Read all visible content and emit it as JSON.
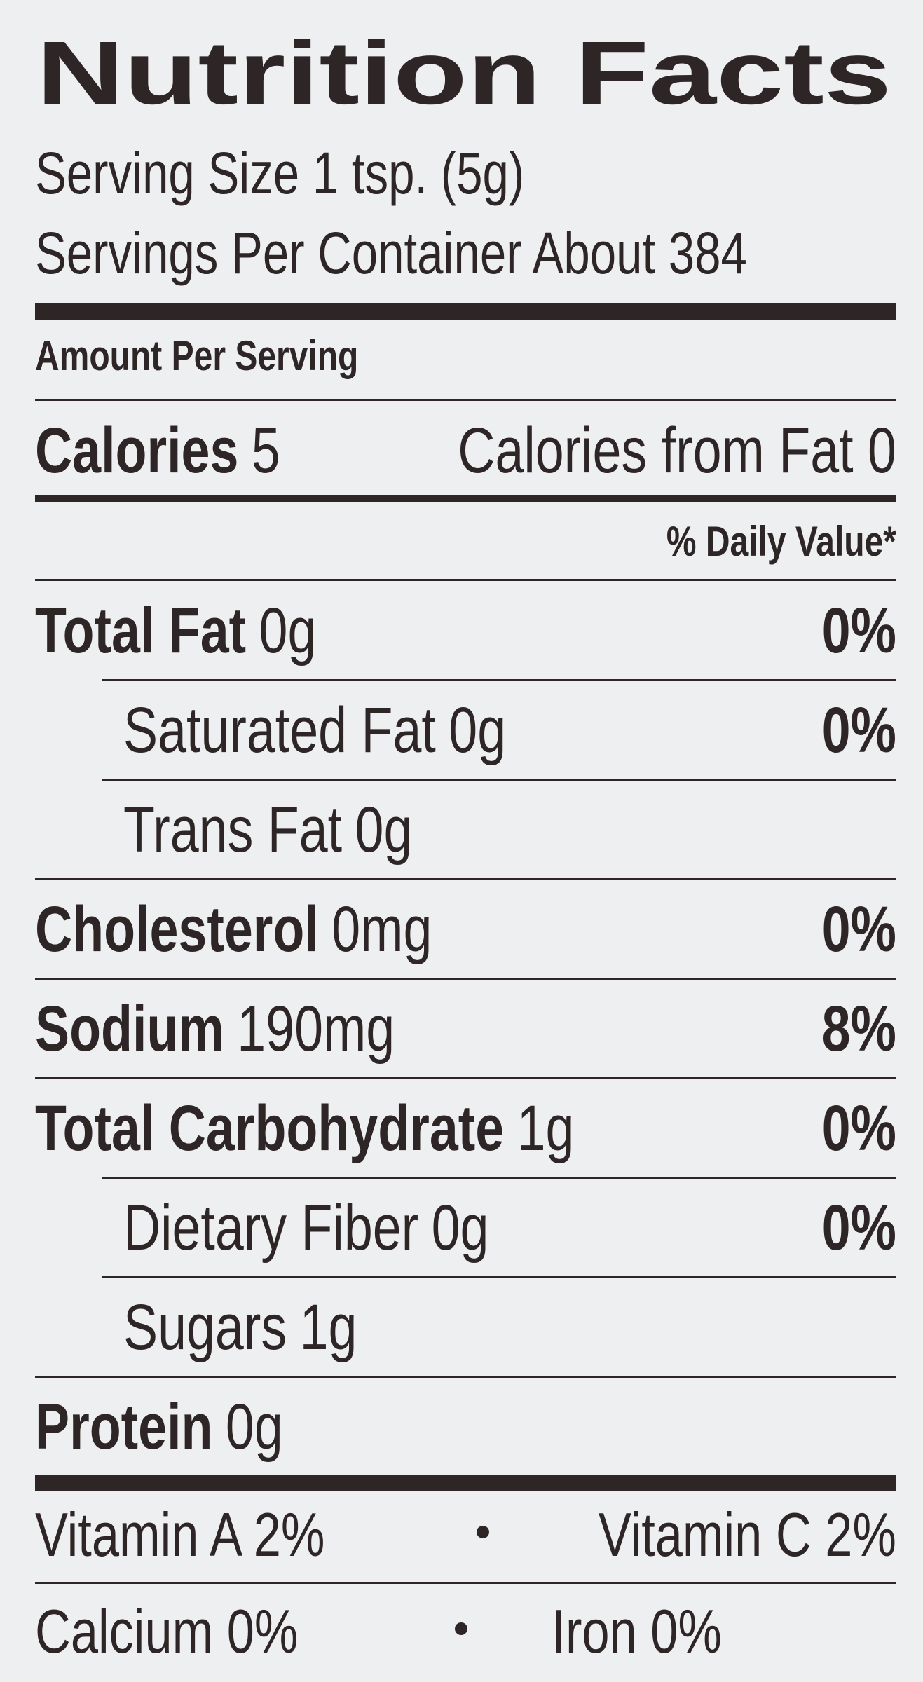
{
  "title": "Nutrition Facts",
  "serving_size": "Serving Size 1 tsp. (5g)",
  "servings_per_container": "Servings Per Container About 384",
  "amount_per_serving": "Amount Per Serving",
  "calories": {
    "label": "Calories",
    "value": "5"
  },
  "calories_from_fat": "Calories from Fat 0",
  "daily_value_header": "% Daily Value*",
  "nutrients": [
    {
      "label": "Total Fat",
      "amount": "0g",
      "dv": "0%",
      "indent": false
    },
    {
      "label": "Saturated Fat",
      "amount": "0g",
      "dv": "0%",
      "indent": true
    },
    {
      "label": "Trans Fat",
      "amount": "0g",
      "indent": true
    },
    {
      "label": "Cholesterol",
      "amount": "0mg",
      "dv": "0%",
      "indent": false
    },
    {
      "label": "Sodium",
      "amount": "190mg",
      "dv": "8%",
      "indent": false
    },
    {
      "label": "Total Carbohydrate",
      "amount": "1g",
      "dv": "0%",
      "indent": false
    },
    {
      "label": "Dietary Fiber",
      "amount": "0g",
      "dv": "0%",
      "indent": true
    },
    {
      "label": "Sugars",
      "amount": "1g",
      "indent": true
    },
    {
      "label": "Protein",
      "amount": "0g",
      "indent": false
    }
  ],
  "vitamins": [
    [
      "Vitamin A 2%",
      "Vitamin C 2%"
    ],
    [
      "Calcium 0%",
      "Iron 0%"
    ]
  ]
}
